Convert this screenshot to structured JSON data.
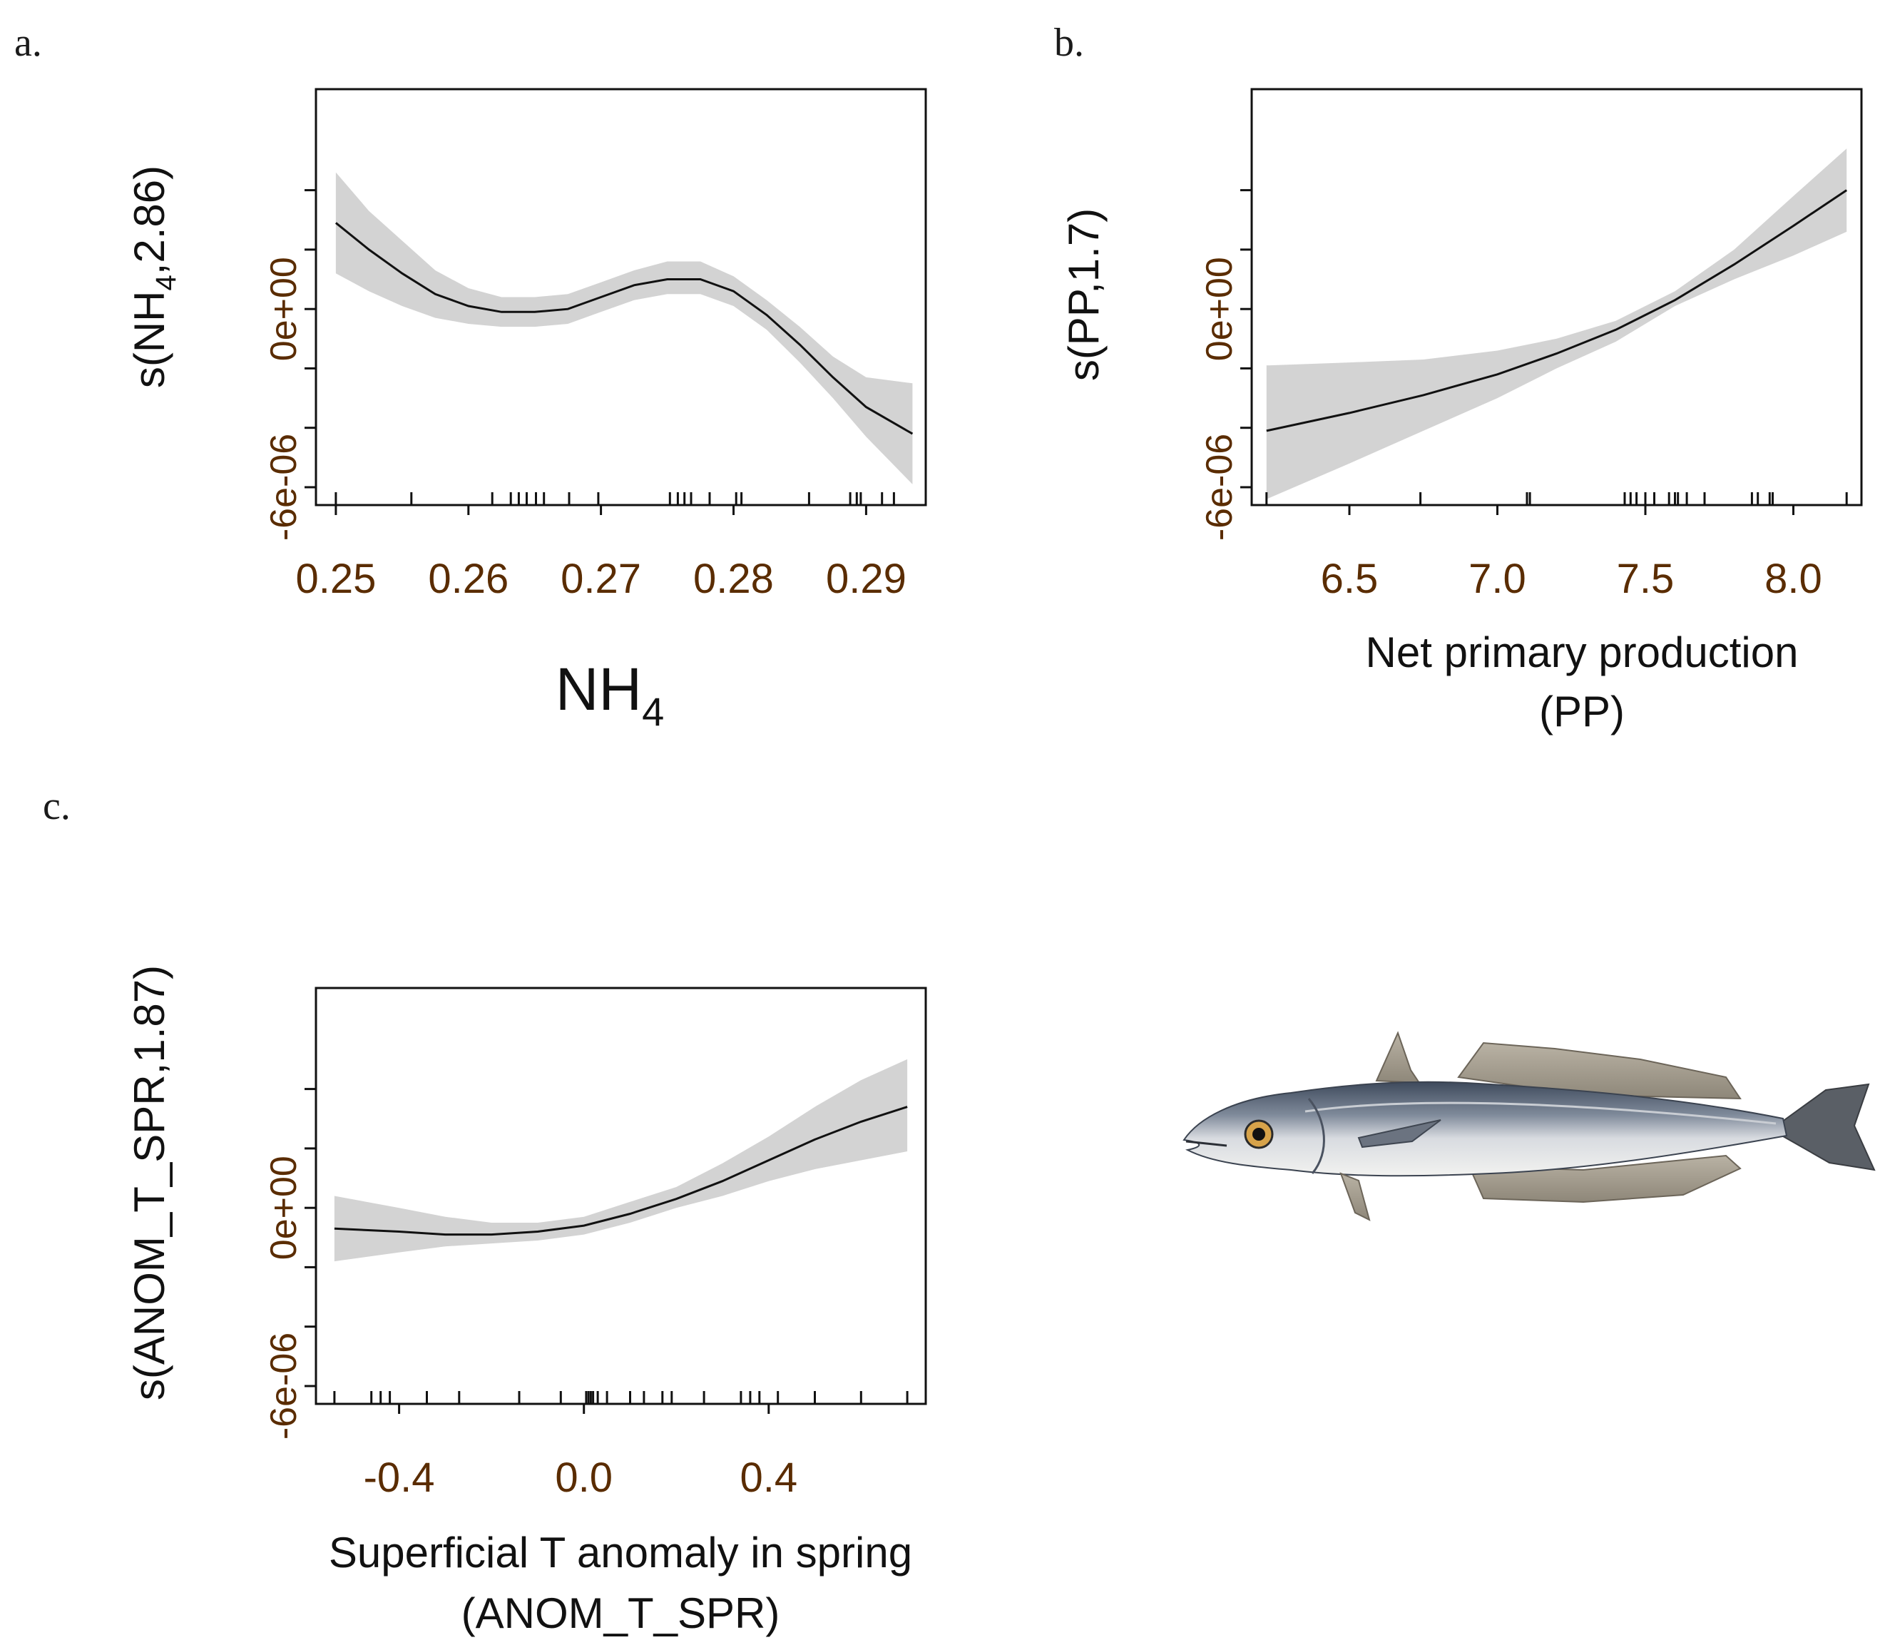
{
  "figure": {
    "panels": [
      "a.",
      "b.",
      "c."
    ],
    "illustration": "hake-fish-illustration"
  },
  "chart_data": [
    {
      "type": "line",
      "panel": "a.",
      "title": "",
      "xlabel": "NH",
      "xlabel_sub": "4",
      "ylabel": "s(NH",
      "ylabel_sub": "4",
      "ylabel_tail": ",2.86)",
      "xlim": [
        0.2485,
        0.2945
      ],
      "ylim": [
        -6.6e-06,
        7.4e-06
      ],
      "xticks": [
        0.25,
        0.26,
        0.27,
        0.28,
        0.29
      ],
      "xtick_labels": [
        "0.25",
        "0.26",
        "0.27",
        "0.28",
        "0.29"
      ],
      "yticks": [
        -6e-06,
        -4e-06,
        -2e-06,
        0,
        2e-06,
        4e-06
      ],
      "ytick_labels": [
        "-6e-06",
        "",
        "",
        "0e+00",
        "",
        ""
      ],
      "x": [
        0.25,
        0.2525,
        0.255,
        0.2575,
        0.26,
        0.2625,
        0.265,
        0.2675,
        0.27,
        0.2725,
        0.275,
        0.2775,
        0.28,
        0.2825,
        0.285,
        0.2875,
        0.29,
        0.2935
      ],
      "fit": [
        2.9e-06,
        2e-06,
        1.2e-06,
        5e-07,
        1e-07,
        -1e-07,
        -1e-07,
        0.0,
        4e-07,
        8e-07,
        1e-06,
        1e-06,
        6e-07,
        -2e-07,
        -1.2e-06,
        -2.3e-06,
        -3.3e-06,
        -4.2e-06
      ],
      "lower": [
        1.2e-06,
        6e-07,
        1e-07,
        -3e-07,
        -5e-07,
        -6e-07,
        -6e-07,
        -5e-07,
        -1e-07,
        3e-07,
        5e-07,
        5e-07,
        1e-07,
        -7e-07,
        -1.8e-06,
        -3e-06,
        -4.3e-06,
        -5.9e-06
      ],
      "upper": [
        4.6e-06,
        3.3e-06,
        2.3e-06,
        1.3e-06,
        7e-07,
        4e-07,
        4e-07,
        5e-07,
        9e-07,
        1.3e-06,
        1.6e-06,
        1.6e-06,
        1.1e-06,
        3e-07,
        -6e-07,
        -1.6e-06,
        -2.3e-06,
        -2.5e-06
      ],
      "rug": [
        0.25,
        0.2557,
        0.2618,
        0.2632,
        0.2638,
        0.2644,
        0.2651,
        0.2657,
        0.2676,
        0.2698,
        0.2752,
        0.2758,
        0.2763,
        0.2768,
        0.2782,
        0.2802,
        0.2806,
        0.2857,
        0.2888,
        0.2893,
        0.2896,
        0.2912,
        0.2921
      ]
    },
    {
      "type": "line",
      "panel": "b.",
      "title": "",
      "xlabel": "Net primary production",
      "xlabel_line2": "(PP)",
      "ylabel": "s(PP,1.7)",
      "xlim": [
        6.17,
        8.23
      ],
      "ylim": [
        -6.6e-06,
        7.4e-06
      ],
      "xticks": [
        6.5,
        7.0,
        7.5,
        8.0
      ],
      "xtick_labels": [
        "6.5",
        "7.0",
        "7.5",
        "8.0"
      ],
      "yticks": [
        -6e-06,
        -4e-06,
        -2e-06,
        0,
        2e-06,
        4e-06
      ],
      "ytick_labels": [
        "-6e-06",
        "",
        "",
        "0e+00",
        "",
        ""
      ],
      "x": [
        6.22,
        6.5,
        6.75,
        7.0,
        7.2,
        7.4,
        7.6,
        7.8,
        8.0,
        8.18
      ],
      "fit": [
        -4.1e-06,
        -3.5e-06,
        -2.9e-06,
        -2.2e-06,
        -1.5e-06,
        -7e-07,
        3e-07,
        1.5e-06,
        2.8e-06,
        4e-06
      ],
      "lower": [
        -6.4e-06,
        -5.2e-06,
        -4.1e-06,
        -3e-06,
        -2e-06,
        -1.1e-06,
        1e-07,
        1e-06,
        1.8e-06,
        2.6e-06
      ],
      "upper": [
        -1.9e-06,
        -1.8e-06,
        -1.7e-06,
        -1.4e-06,
        -1e-06,
        -4e-07,
        6e-07,
        2e-06,
        3.8e-06,
        5.4e-06
      ],
      "rug": [
        6.22,
        6.74,
        7.1,
        7.11,
        7.43,
        7.45,
        7.47,
        7.5,
        7.53,
        7.58,
        7.6,
        7.61,
        7.64,
        7.7,
        7.86,
        7.88,
        7.92,
        7.93,
        8.18
      ]
    },
    {
      "type": "line",
      "panel": "c.",
      "title": "",
      "xlabel": "Superficial T anomaly in spring",
      "xlabel_line2": "(ANOM_T_SPR)",
      "ylabel": "s(ANOM_T_SPR,1.87)",
      "xlim": [
        -0.58,
        0.74
      ],
      "ylim": [
        -6.6e-06,
        7.4e-06
      ],
      "xticks": [
        -0.4,
        0.0,
        0.4
      ],
      "xtick_labels": [
        "-0.4",
        "0.0",
        "0.4"
      ],
      "yticks": [
        -6e-06,
        -4e-06,
        -2e-06,
        0,
        2e-06,
        4e-06
      ],
      "ytick_labels": [
        "-6e-06",
        "",
        "",
        "0e+00",
        "",
        ""
      ],
      "x": [
        -0.54,
        -0.4,
        -0.3,
        -0.2,
        -0.1,
        0.0,
        0.1,
        0.2,
        0.3,
        0.4,
        0.5,
        0.6,
        0.7
      ],
      "fit": [
        -7e-07,
        -8e-07,
        -9e-07,
        -9e-07,
        -8e-07,
        -6e-07,
        -2e-07,
        3e-07,
        9e-07,
        1.6e-06,
        2.3e-06,
        2.9e-06,
        3.4e-06
      ],
      "lower": [
        -1.8e-06,
        -1.5e-06,
        -1.3e-06,
        -1.2e-06,
        -1.1e-06,
        -9e-07,
        -5e-07,
        0.0,
        4e-07,
        9e-07,
        1.3e-06,
        1.6e-06,
        1.9e-06
      ],
      "upper": [
        4e-07,
        0.0,
        -3e-07,
        -5e-07,
        -5e-07,
        -3e-07,
        2e-07,
        7e-07,
        1.5e-06,
        2.4e-06,
        3.4e-06,
        4.3e-06,
        5e-06
      ],
      "rug": [
        -0.54,
        -0.46,
        -0.44,
        -0.42,
        -0.34,
        -0.27,
        -0.14,
        -0.05,
        0.005,
        0.01,
        0.015,
        0.02,
        0.03,
        0.05,
        0.1,
        0.13,
        0.17,
        0.19,
        0.26,
        0.34,
        0.36,
        0.38,
        0.42,
        0.5,
        0.6,
        0.7
      ]
    }
  ]
}
